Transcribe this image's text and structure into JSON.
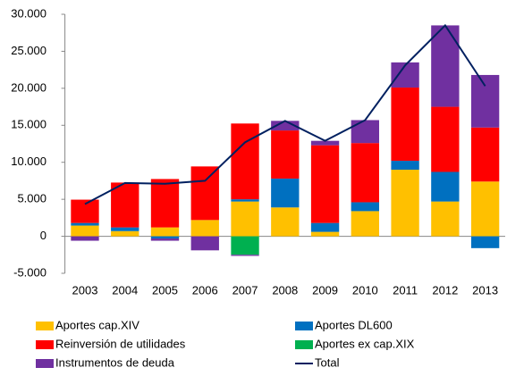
{
  "chart_data": {
    "type": "stacked-bar-line",
    "categories": [
      "2003",
      "2004",
      "2005",
      "2006",
      "2007",
      "2008",
      "2009",
      "2010",
      "2011",
      "2012",
      "2013"
    ],
    "series": [
      {
        "name": "Aportes cap.XIV",
        "color": "#ffc000",
        "values": [
          1450,
          700,
          1200,
          2200,
          4700,
          3900,
          600,
          3400,
          9000,
          4700,
          7400
        ]
      },
      {
        "name": "Aportes DL600",
        "color": "#0070c0",
        "values": [
          350,
          500,
          -300,
          0,
          300,
          3900,
          1200,
          1200,
          1200,
          4000,
          -1600
        ]
      },
      {
        "name": "Reinversión de utilidades",
        "color": "#ff0000",
        "values": [
          3150,
          6060,
          6540,
          7240,
          10240,
          6500,
          10500,
          8000,
          9900,
          8800,
          7300
        ]
      },
      {
        "name": "Aportes ex cap.XIX",
        "color": "#00b050",
        "values": [
          0,
          0,
          0,
          0,
          -2500,
          0,
          0,
          0,
          0,
          0,
          0
        ]
      },
      {
        "name": "Instrumentos de deuda",
        "color": "#7030a0",
        "values": [
          -600,
          0,
          -300,
          -1900,
          -150,
          1300,
          600,
          3100,
          3400,
          11000,
          7100
        ]
      },
      {
        "name": "Total",
        "color": "#002060",
        "type": "line",
        "values": [
          4350,
          7200,
          7100,
          7500,
          12700,
          15600,
          12900,
          15700,
          23100,
          28500,
          20300
        ]
      }
    ],
    "ylim": [
      -5000,
      30000
    ],
    "yticks": [
      {
        "value": -5000,
        "label": "-5.000"
      },
      0,
      {
        "value": 5000,
        "label": "5.000"
      },
      {
        "value": 10000,
        "label": "10.000"
      },
      {
        "value": 15000,
        "label": "15.000"
      },
      {
        "value": 20000,
        "label": "20.000"
      },
      {
        "value": 25000,
        "label": "25.000"
      },
      {
        "value": 30000,
        "label": "30.000"
      }
    ],
    "legend": "bottom"
  }
}
